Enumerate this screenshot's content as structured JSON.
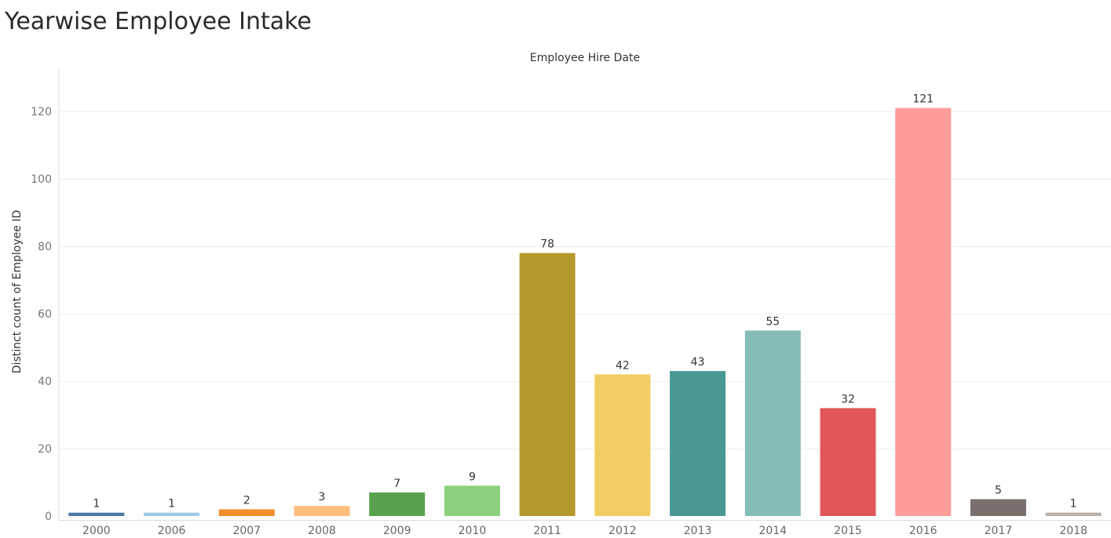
{
  "title": "Yearwise Employee Intake",
  "chart_data": {
    "type": "bar",
    "title": "Yearwise Employee Intake",
    "column_header": "Employee Hire Date",
    "xlabel": "",
    "ylabel": "Distinct count of Employee ID",
    "categories": [
      "2000",
      "2006",
      "2007",
      "2008",
      "2009",
      "2010",
      "2011",
      "2012",
      "2013",
      "2014",
      "2015",
      "2016",
      "2017",
      "2018"
    ],
    "values": [
      1,
      1,
      2,
      3,
      7,
      9,
      78,
      42,
      43,
      55,
      32,
      121,
      5,
      1
    ],
    "colors": [
      "#4e79a7",
      "#a0cbe8",
      "#f28e2b",
      "#ffbe7d",
      "#59a14f",
      "#8cd17d",
      "#b6992d",
      "#f1ce63",
      "#499894",
      "#86bcb6",
      "#e15759",
      "#ff9d9a",
      "#79706e",
      "#bab0ac"
    ],
    "yticks": [
      0,
      20,
      40,
      60,
      80,
      100,
      120
    ],
    "ylim": [
      -2,
      133
    ],
    "grid": true,
    "legend": "none"
  }
}
